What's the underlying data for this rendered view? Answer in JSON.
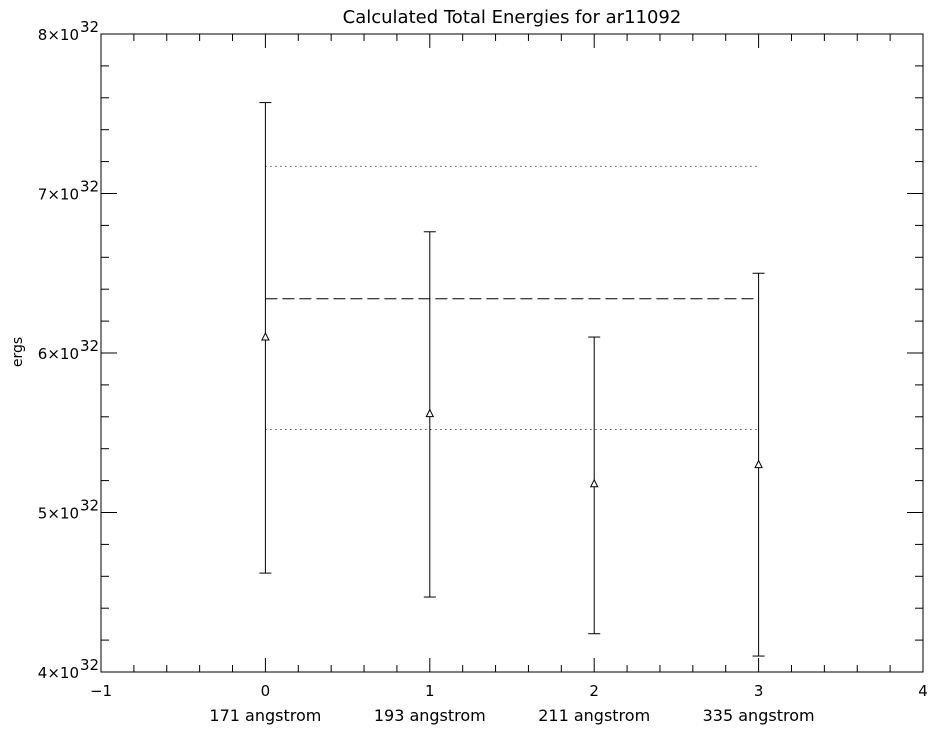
{
  "chart_data": {
    "type": "scatter",
    "title": "Calculated Total Energies for ar11092",
    "xlabel": "",
    "ylabel": "ergs",
    "xlim": [
      -1,
      4
    ],
    "ylim": [
      4e+32,
      8e+32
    ],
    "x_ticks": [
      {
        "value": -1,
        "label": "−1"
      },
      {
        "value": 0,
        "label": "0"
      },
      {
        "value": 1,
        "label": "1"
      },
      {
        "value": 2,
        "label": "2"
      },
      {
        "value": 3,
        "label": "3"
      },
      {
        "value": 4,
        "label": "4"
      }
    ],
    "y_ticks": [
      {
        "value": 4e+32,
        "mantissa": "4",
        "base": "×10",
        "exponent": "32"
      },
      {
        "value": 5e+32,
        "mantissa": "5",
        "base": "×10",
        "exponent": "32"
      },
      {
        "value": 6e+32,
        "mantissa": "6",
        "base": "×10",
        "exponent": "32"
      },
      {
        "value": 7e+32,
        "mantissa": "7",
        "base": "×10",
        "exponent": "32"
      },
      {
        "value": 8e+32,
        "mantissa": "8",
        "base": "×10",
        "exponent": "32"
      }
    ],
    "category_labels": [
      "171 angstrom",
      "193 angstrom",
      "211 angstrom",
      "335 angstrom"
    ],
    "points": [
      {
        "x": 0,
        "y": 6.1e+32,
        "err_low": 4.62e+32,
        "err_high": 7.57e+32
      },
      {
        "x": 1,
        "y": 5.62e+32,
        "err_low": 4.47e+32,
        "err_high": 6.76e+32
      },
      {
        "x": 2,
        "y": 5.18e+32,
        "err_low": 4.24e+32,
        "err_high": 6.1e+32
      },
      {
        "x": 3,
        "y": 5.3e+32,
        "err_low": 4.1e+32,
        "err_high": 6.5e+32
      }
    ],
    "reference_lines": [
      {
        "style": "dashed",
        "y": 6.34e+32,
        "x_from": 0,
        "x_to": 3
      },
      {
        "style": "dotted",
        "y": 7.17e+32,
        "x_from": 0,
        "x_to": 3
      },
      {
        "style": "dotted",
        "y": 5.52e+32,
        "x_from": 0,
        "x_to": 3
      }
    ],
    "marker": "triangle",
    "grid": false,
    "legend": "none"
  }
}
